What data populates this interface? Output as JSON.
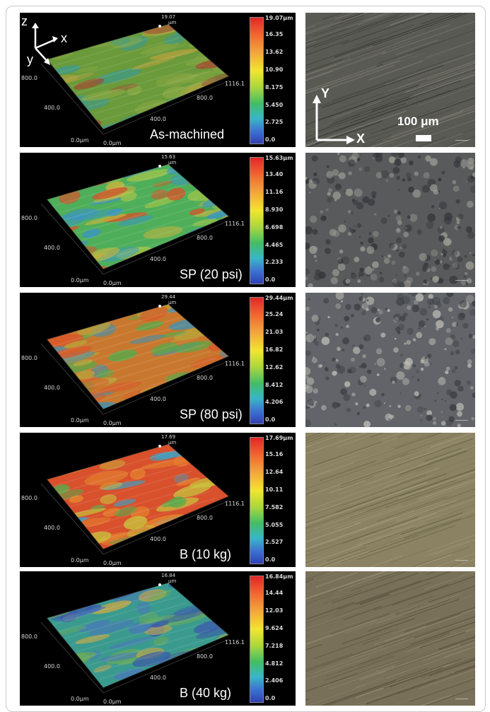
{
  "panels": [
    {
      "label": "As-machined",
      "peak_value": "19.07",
      "peak_unit": "μm",
      "colorbar": [
        "19.07μm",
        "16.35",
        "13.62",
        "10.90",
        "8.175",
        "5.450",
        "2.725",
        "0.0"
      ],
      "palette": [
        "#6a9a3a",
        "#8aa844",
        "#b6a23e",
        "#3f9a8a",
        "#a04d32"
      ],
      "photo_palette": [
        "#3a3a36",
        "#5a5a54",
        "#7c7c74"
      ],
      "texture": "scratched"
    },
    {
      "label": "SP (20 psi)",
      "peak_value": "15.63",
      "peak_unit": "μm",
      "colorbar": [
        "15.63μm",
        "13.40",
        "11.16",
        "8.930",
        "6.698",
        "4.465",
        "2.233",
        "0.0"
      ],
      "palette": [
        "#4fae5a",
        "#9bc34a",
        "#c8b43e",
        "#3c95c2",
        "#d0582c"
      ],
      "photo_palette": [
        "#34363a",
        "#585a5c",
        "#9a9a92"
      ],
      "texture": "peened"
    },
    {
      "label": "SP (80 psi)",
      "peak_value": "29.44",
      "peak_unit": "μm",
      "colorbar": [
        "29.44μm",
        "25.24",
        "21.03",
        "16.82",
        "12.62",
        "8.412",
        "4.206",
        "0.0"
      ],
      "palette": [
        "#c8782e",
        "#d85a2a",
        "#b9a33a",
        "#5aa84a",
        "#3a92b8"
      ],
      "photo_palette": [
        "#3c3e44",
        "#62646a",
        "#b8b8b0"
      ],
      "texture": "peened"
    },
    {
      "label": "B (10 kg)",
      "peak_value": "17.69",
      "peak_unit": "μm",
      "colorbar": [
        "17.69μm",
        "15.16",
        "12.64",
        "10.11",
        "7.582",
        "5.055",
        "2.527",
        "0.0"
      ],
      "palette": [
        "#d8502c",
        "#e6872e",
        "#5aaa4c",
        "#40a0c0",
        "#c8c03c"
      ],
      "photo_palette": [
        "#6a6448",
        "#8a8262",
        "#a49c7c"
      ],
      "texture": "scratched"
    },
    {
      "label": "B (40 kg)",
      "peak_value": "16.84",
      "peak_unit": "μm",
      "colorbar": [
        "16.84μm",
        "14.44",
        "12.03",
        "9.624",
        "7.218",
        "4.812",
        "2.406",
        "0.0"
      ],
      "palette": [
        "#3a9a8e",
        "#4a78b8",
        "#6aac58",
        "#c6a848",
        "#3a5aa8"
      ],
      "photo_palette": [
        "#55503c",
        "#787058",
        "#948c72"
      ],
      "texture": "scratched"
    }
  ],
  "axis_ticks": {
    "y_top": "800.0",
    "y_mid": "400.0",
    "y_zero": "0.0μm",
    "x_zero": "0.0μm",
    "x_mid": "400.0",
    "x_far": "800.0",
    "x_end": "1116.1"
  },
  "surface_axes": {
    "z": "z",
    "x": "x",
    "y": "y"
  },
  "photo_axes": {
    "y": "Y",
    "x": "X"
  },
  "scale_bar_label": "100 μm"
}
